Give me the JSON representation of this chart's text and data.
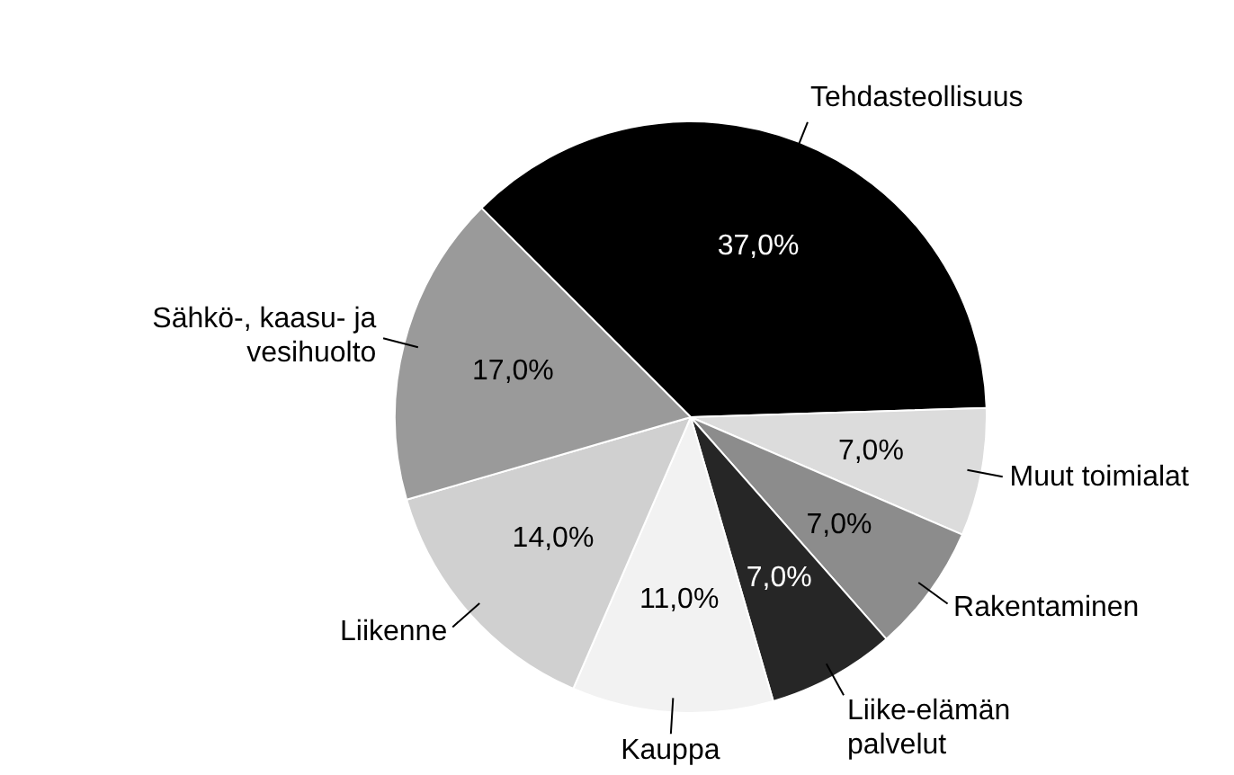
{
  "chart_data": {
    "type": "pie",
    "categories": [
      "Tehdasteollisuus",
      "Muut toimialat",
      "Rakentaminen",
      "Liike-elämän palvelut",
      "Kauppa",
      "Liikenne",
      "Sähkö-, kaasu- ja vesihuolto"
    ],
    "values": [
      37,
      7,
      7,
      7,
      11,
      14,
      17
    ],
    "value_labels": [
      "37,0%",
      "7,0%",
      "7,0%",
      "7,0%",
      "11,0%",
      "14,0%",
      "17,0%"
    ],
    "colors": [
      "#000000",
      "#dcdcdc",
      "#8c8c8c",
      "#262626",
      "#f2f2f2",
      "#d0d0d0",
      "#9a9a9a"
    ],
    "legend": false
  }
}
